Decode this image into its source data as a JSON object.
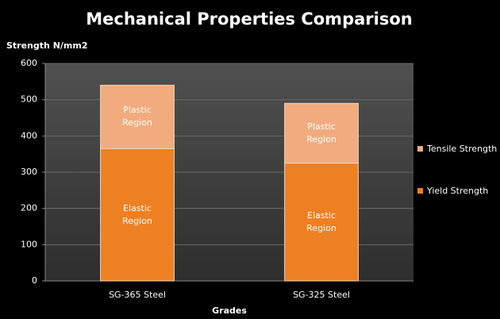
{
  "chart_data": {
    "type": "stacked_bar",
    "title": "Mechanical Properties Comparison",
    "y_label": "Strength N/mm2",
    "x_label": "Grades",
    "categories": [
      "SG-365 Steel",
      "SG-325 Steel"
    ],
    "series": [
      {
        "name": "Yield Strength",
        "color": "#ee8024",
        "values": [
          365,
          325
        ],
        "region_label": "Elastic Region"
      },
      {
        "name": "Tensile Strength",
        "color": "#f2ab7e",
        "values": [
          175,
          165
        ],
        "region_label": "Plastic Region"
      }
    ],
    "ylim": [
      0,
      600
    ],
    "yticks": [
      0,
      100,
      200,
      300,
      400,
      500,
      600
    ],
    "grid": true,
    "legend": "right"
  }
}
